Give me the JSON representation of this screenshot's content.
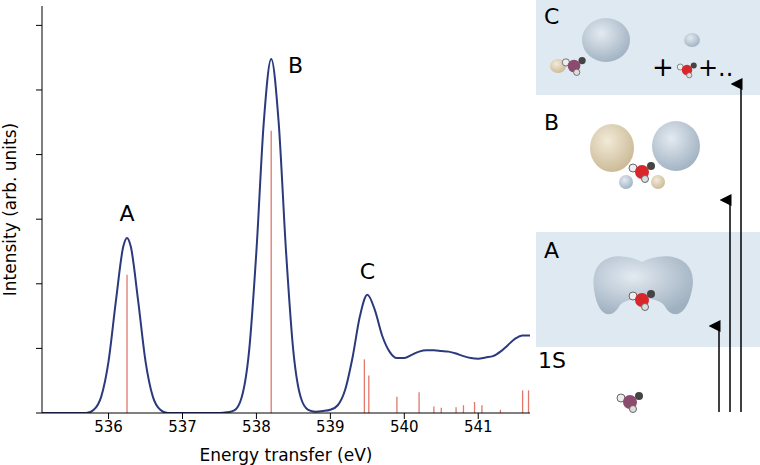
{
  "chart_data": {
    "type": "line",
    "x_label": "Energy transfer (eV)",
    "y_label": "Intensity (arb. units)",
    "xlim": [
      535.1,
      541.7
    ],
    "xticks": [
      536,
      537,
      538,
      539,
      540,
      541
    ],
    "ylim": [
      0,
      6.3
    ],
    "yticks": [
      0,
      1,
      2,
      3,
      4,
      5,
      6
    ],
    "tick_labels": "x",
    "grid": false,
    "series": [
      {
        "type": "line",
        "color": "#2b3a7c",
        "x": [
          535.1,
          535.2,
          535.3,
          535.4,
          535.5,
          535.6,
          535.7,
          535.8,
          535.9,
          536.0,
          536.1,
          536.2,
          536.25,
          536.3,
          536.4,
          536.5,
          536.6,
          536.7,
          536.8,
          536.9,
          537.0,
          537.1,
          537.2,
          537.3,
          537.4,
          537.5,
          537.6,
          537.7,
          537.8,
          537.9,
          538.0,
          538.1,
          538.2,
          538.3,
          538.4,
          538.5,
          538.6,
          538.7,
          538.8,
          538.9,
          539.0,
          539.1,
          539.2,
          539.3,
          539.4,
          539.5,
          539.6,
          539.7,
          539.8,
          539.9,
          540.0,
          540.1,
          540.2,
          540.3,
          540.4,
          540.5,
          540.6,
          540.7,
          540.8,
          540.9,
          541.0,
          541.1,
          541.2,
          541.3,
          541.4,
          541.5,
          541.6,
          541.7
        ],
        "values": [
          0,
          0,
          0,
          0,
          0,
          0,
          0,
          0.05,
          0.25,
          0.8,
          1.74,
          2.58,
          2.71,
          2.58,
          1.74,
          0.8,
          0.25,
          0.05,
          0,
          0,
          0,
          0,
          0,
          0,
          0,
          0,
          0.01,
          0.04,
          0.24,
          0.95,
          2.51,
          4.51,
          5.48,
          4.51,
          2.51,
          0.95,
          0.24,
          0.05,
          0.02,
          0.03,
          0.05,
          0.12,
          0.36,
          0.86,
          1.5,
          1.83,
          1.6,
          1.2,
          0.95,
          0.85,
          0.85,
          0.9,
          0.95,
          0.97,
          0.97,
          0.96,
          0.95,
          0.92,
          0.88,
          0.85,
          0.84,
          0.86,
          0.88,
          0.95,
          1.05,
          1.15,
          1.2,
          1.2
        ]
      },
      {
        "type": "stick",
        "color": "#e2776a",
        "x": [
          536.25,
          538.2,
          539.46,
          539.52,
          539.9,
          540.2,
          540.4,
          540.5,
          540.7,
          540.8,
          540.95,
          541.05,
          541.3,
          541.6,
          541.68
        ],
        "values": [
          2.14,
          4.37,
          0.83,
          0.58,
          0.25,
          0.32,
          0.1,
          0.08,
          0.09,
          0.12,
          0.17,
          0.12,
          0.05,
          0.35,
          0.35
        ]
      }
    ],
    "annotations": [
      {
        "text": "A",
        "x": 536.25,
        "y": 3.09
      },
      {
        "text": "B",
        "x": 538.53,
        "y": 5.38
      },
      {
        "text": "C",
        "x": 539.5,
        "y": 2.2
      }
    ]
  },
  "diagram": {
    "levels": [
      {
        "label": "C",
        "terms": [
          "+",
          "+.."
        ]
      },
      {
        "label": "B"
      },
      {
        "label": "A"
      },
      {
        "label": "1S"
      }
    ]
  }
}
